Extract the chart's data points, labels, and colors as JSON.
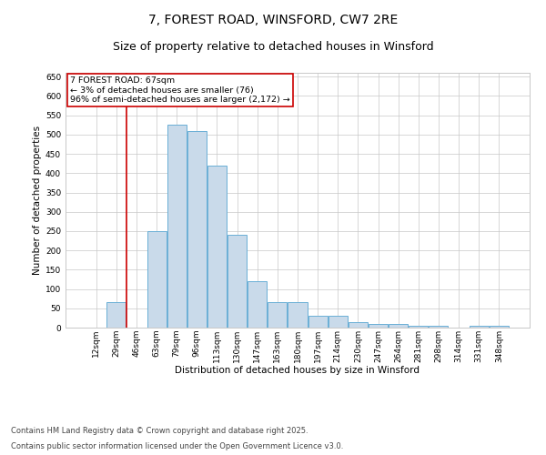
{
  "title": "7, FOREST ROAD, WINSFORD, CW7 2RE",
  "subtitle": "Size of property relative to detached houses in Winsford",
  "xlabel": "Distribution of detached houses by size in Winsford",
  "ylabel": "Number of detached properties",
  "categories": [
    "12sqm",
    "29sqm",
    "46sqm",
    "63sqm",
    "79sqm",
    "96sqm",
    "113sqm",
    "130sqm",
    "147sqm",
    "163sqm",
    "180sqm",
    "197sqm",
    "214sqm",
    "230sqm",
    "247sqm",
    "264sqm",
    "281sqm",
    "298sqm",
    "314sqm",
    "331sqm",
    "348sqm"
  ],
  "values": [
    0,
    65,
    0,
    250,
    525,
    510,
    420,
    240,
    120,
    65,
    65,
    30,
    30,
    15,
    10,
    10,
    5,
    5,
    0,
    5,
    5
  ],
  "bar_color": "#c9daea",
  "bar_edge_color": "#6aafd6",
  "background_color": "#ffffff",
  "grid_color": "#c8c8c8",
  "annotation_box_color": "#cc0000",
  "annotation_line_color": "#cc0000",
  "annotation_text": "7 FOREST ROAD: 67sqm\n← 3% of detached houses are smaller (76)\n96% of semi-detached houses are larger (2,172) →",
  "property_line_x": 1.5,
  "ylim": [
    0,
    660
  ],
  "yticks": [
    0,
    50,
    100,
    150,
    200,
    250,
    300,
    350,
    400,
    450,
    500,
    550,
    600,
    650
  ],
  "footnote1": "Contains HM Land Registry data © Crown copyright and database right 2025.",
  "footnote2": "Contains public sector information licensed under the Open Government Licence v3.0.",
  "title_fontsize": 10,
  "subtitle_fontsize": 9,
  "axis_label_fontsize": 7.5,
  "tick_fontsize": 6.5,
  "annotation_fontsize": 6.8,
  "footnote_fontsize": 6.0
}
